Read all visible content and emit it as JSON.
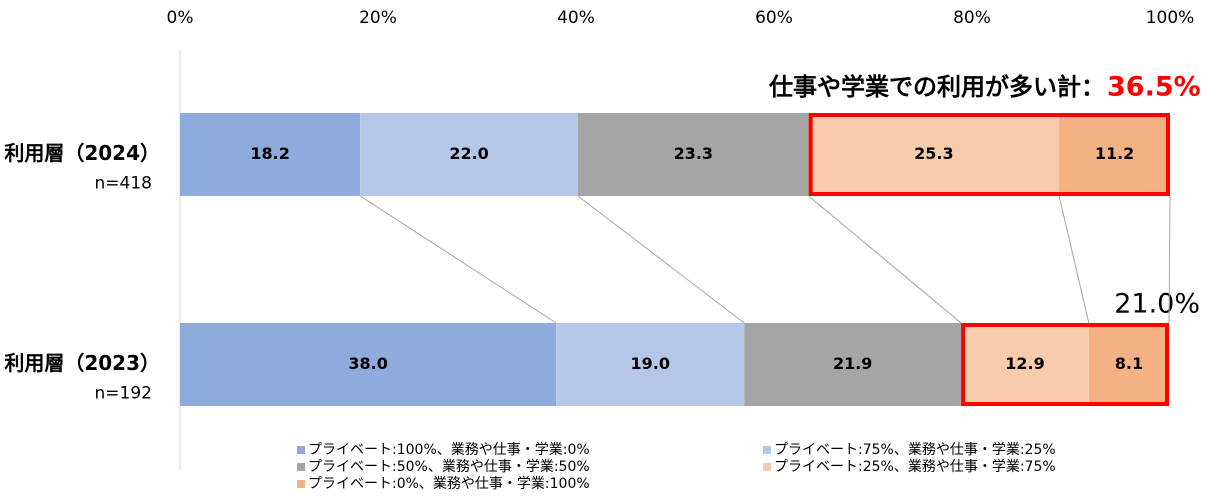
{
  "chart_data": {
    "type": "bar",
    "orientation": "horizontal",
    "stacked": true,
    "categories": [
      "利用層（2024）",
      "利用層（2023）"
    ],
    "sample_sizes": [
      "n=418",
      "n=192"
    ],
    "series": [
      {
        "name": "プライベート:100%、業務や仕事・学業:0%",
        "color": "#8faadc",
        "values": [
          18.2,
          38.0
        ],
        "value_labels": [
          "18.2",
          "38.0"
        ]
      },
      {
        "name": "プライベート:75%、業務や仕事・学業:25%",
        "color": "#b4c7e7",
        "values": [
          22.0,
          19.0
        ],
        "value_labels": [
          "22.0",
          "19.0"
        ]
      },
      {
        "name": "プライベート:50%、業務や仕事・学業:50%",
        "color": "#a5a5a5",
        "values": [
          23.3,
          21.9
        ],
        "value_labels": [
          "23.3",
          "21.9"
        ]
      },
      {
        "name": "プライベート:25%、業務や仕事・学業:75%",
        "color": "#f8cbad",
        "values": [
          25.3,
          12.9
        ],
        "value_labels": [
          "25.3",
          "12.9"
        ]
      },
      {
        "name": "プライベート:0%、業務や仕事・学業:100%",
        "color": "#f4b183",
        "values": [
          11.2,
          8.1
        ],
        "value_labels": [
          "11.2",
          "8.1"
        ]
      }
    ],
    "xlim": [
      0,
      100
    ],
    "xticks": [
      {
        "value": 0,
        "label": "0%"
      },
      {
        "value": 20,
        "label": "20%"
      },
      {
        "value": 40,
        "label": "40%"
      },
      {
        "value": 60,
        "label": "60%"
      },
      {
        "value": 80,
        "label": "80%"
      },
      {
        "value": 100,
        "label": "100%"
      }
    ],
    "annotations": {
      "label": "仕事や学業での利用が多い計：",
      "total_2024": "36.5%",
      "total_2023": "21.0%"
    },
    "highlight_color": "#ff0000"
  }
}
